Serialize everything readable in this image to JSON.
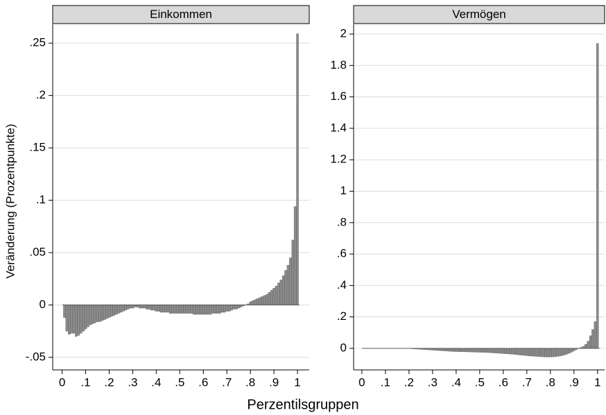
{
  "xlabel": "Perzentilsgruppen",
  "ylabel": "Veränderung (Prozentpunkte)",
  "chart_data": [
    {
      "type": "bar",
      "title": "Einkommen",
      "color": "#8c8c8c",
      "grid": true,
      "xlim": [
        -0.04,
        1.05
      ],
      "ylim": [
        -0.062,
        0.268
      ],
      "xticks": [
        0,
        {
          "value": 0.1,
          "label": ".1"
        },
        {
          "value": 0.2,
          "label": ".2"
        },
        {
          "value": 0.3,
          "label": ".3"
        },
        {
          "value": 0.4,
          "label": ".4"
        },
        {
          "value": 0.5,
          "label": ".5"
        },
        {
          "value": 0.6,
          "label": ".6"
        },
        {
          "value": 0.7,
          "label": ".7"
        },
        {
          "value": 0.8,
          "label": ".8"
        },
        {
          "value": 0.9,
          "label": ".9"
        },
        1
      ],
      "yticks": [
        {
          "value": -0.05,
          "label": "-.05"
        },
        0,
        {
          "value": 0.05,
          "label": ".05"
        },
        {
          "value": 0.1,
          "label": ".1"
        },
        {
          "value": 0.15,
          "label": ".15"
        },
        {
          "value": 0.2,
          "label": ".2"
        },
        {
          "value": 0.25,
          "label": ".25"
        }
      ],
      "x": [
        0.01,
        0.02,
        0.03,
        0.04,
        0.05,
        0.06,
        0.07,
        0.08,
        0.09,
        0.1,
        0.11,
        0.12,
        0.13,
        0.14,
        0.15,
        0.16,
        0.17,
        0.18,
        0.19,
        0.2,
        0.21,
        0.22,
        0.23,
        0.24,
        0.25,
        0.26,
        0.27,
        0.28,
        0.29,
        0.3,
        0.31,
        0.32,
        0.33,
        0.34,
        0.35,
        0.36,
        0.37,
        0.38,
        0.39,
        0.4,
        0.41,
        0.42,
        0.43,
        0.44,
        0.45,
        0.46,
        0.47,
        0.48,
        0.49,
        0.5,
        0.51,
        0.52,
        0.53,
        0.54,
        0.55,
        0.56,
        0.57,
        0.58,
        0.59,
        0.6,
        0.61,
        0.62,
        0.63,
        0.64,
        0.65,
        0.66,
        0.67,
        0.68,
        0.69,
        0.7,
        0.71,
        0.72,
        0.73,
        0.74,
        0.75,
        0.76,
        0.77,
        0.78,
        0.79,
        0.8,
        0.81,
        0.82,
        0.83,
        0.84,
        0.85,
        0.86,
        0.87,
        0.88,
        0.89,
        0.9,
        0.91,
        0.92,
        0.93,
        0.94,
        0.95,
        0.96,
        0.97,
        0.98,
        0.99,
        1
      ],
      "values": [
        -0.012,
        -0.025,
        -0.028,
        -0.027,
        -0.027,
        -0.03,
        -0.029,
        -0.027,
        -0.025,
        -0.023,
        -0.021,
        -0.019,
        -0.018,
        -0.017,
        -0.016,
        -0.016,
        -0.015,
        -0.014,
        -0.013,
        -0.012,
        -0.011,
        -0.01,
        -0.009,
        -0.008,
        -0.007,
        -0.006,
        -0.005,
        -0.004,
        -0.003,
        -0.003,
        -0.002,
        -0.002,
        -0.003,
        -0.003,
        -0.003,
        -0.004,
        -0.004,
        -0.005,
        -0.005,
        -0.006,
        -0.006,
        -0.007,
        -0.007,
        -0.007,
        -0.007,
        -0.008,
        -0.008,
        -0.008,
        -0.008,
        -0.008,
        -0.008,
        -0.008,
        -0.008,
        -0.008,
        -0.008,
        -0.009,
        -0.009,
        -0.009,
        -0.009,
        -0.009,
        -0.009,
        -0.009,
        -0.009,
        -0.008,
        -0.008,
        -0.008,
        -0.008,
        -0.007,
        -0.007,
        -0.006,
        -0.006,
        -0.005,
        -0.004,
        -0.004,
        -0.003,
        -0.002,
        -0.001,
        0,
        0.001,
        0.003,
        0.004,
        0.005,
        0.006,
        0.007,
        0.008,
        0.009,
        0.01,
        0.012,
        0.014,
        0.016,
        0.018,
        0.021,
        0.024,
        0.028,
        0.033,
        0.038,
        0.045,
        0.062,
        0.094,
        0.259
      ]
    },
    {
      "type": "bar",
      "title": "Vermögen",
      "color": "#8c8c8c",
      "grid": true,
      "xlim": [
        -0.035,
        1.03
      ],
      "ylim": [
        -0.137,
        2.062
      ],
      "xticks": [
        0,
        {
          "value": 0.1,
          "label": ".1"
        },
        {
          "value": 0.2,
          "label": ".2"
        },
        {
          "value": 0.3,
          "label": ".3"
        },
        {
          "value": 0.4,
          "label": ".4"
        },
        {
          "value": 0.5,
          "label": ".5"
        },
        {
          "value": 0.6,
          "label": ".6"
        },
        {
          "value": 0.7,
          "label": ".7"
        },
        {
          "value": 0.8,
          "label": ".8"
        },
        {
          "value": 0.9,
          "label": ".9"
        },
        1
      ],
      "yticks": [
        0,
        {
          "value": 0.2,
          "label": ".2"
        },
        {
          "value": 0.4,
          "label": ".4"
        },
        {
          "value": 0.6,
          "label": ".6"
        },
        {
          "value": 0.8,
          "label": ".8"
        },
        1,
        1.2,
        1.4,
        1.6,
        1.8,
        2
      ],
      "x": [
        0.01,
        0.02,
        0.03,
        0.04,
        0.05,
        0.06,
        0.07,
        0.08,
        0.09,
        0.1,
        0.11,
        0.12,
        0.13,
        0.14,
        0.15,
        0.16,
        0.17,
        0.18,
        0.19,
        0.2,
        0.21,
        0.22,
        0.23,
        0.24,
        0.25,
        0.26,
        0.27,
        0.28,
        0.29,
        0.3,
        0.31,
        0.32,
        0.33,
        0.34,
        0.35,
        0.36,
        0.37,
        0.38,
        0.39,
        0.4,
        0.41,
        0.42,
        0.43,
        0.44,
        0.45,
        0.46,
        0.47,
        0.48,
        0.49,
        0.5,
        0.51,
        0.52,
        0.53,
        0.54,
        0.55,
        0.56,
        0.57,
        0.58,
        0.59,
        0.6,
        0.61,
        0.62,
        0.63,
        0.64,
        0.65,
        0.66,
        0.67,
        0.68,
        0.69,
        0.7,
        0.71,
        0.72,
        0.73,
        0.74,
        0.75,
        0.76,
        0.77,
        0.78,
        0.79,
        0.8,
        0.81,
        0.82,
        0.83,
        0.84,
        0.85,
        0.86,
        0.87,
        0.88,
        0.89,
        0.9,
        0.91,
        0.92,
        0.93,
        0.94,
        0.95,
        0.96,
        0.97,
        0.98,
        0.99,
        1
      ],
      "values": [
        0,
        0,
        0,
        0,
        0,
        0,
        0,
        0,
        0,
        0,
        -0.001,
        -0.001,
        -0.001,
        -0.001,
        -0.001,
        -0.001,
        -0.001,
        -0.001,
        -0.001,
        -0.001,
        -0.002,
        -0.003,
        -0.004,
        -0.005,
        -0.006,
        -0.007,
        -0.008,
        -0.009,
        -0.01,
        -0.011,
        -0.012,
        -0.013,
        -0.014,
        -0.015,
        -0.016,
        -0.017,
        -0.018,
        -0.019,
        -0.02,
        -0.02,
        -0.021,
        -0.021,
        -0.022,
        -0.022,
        -0.022,
        -0.023,
        -0.023,
        -0.024,
        -0.024,
        -0.025,
        -0.025,
        -0.026,
        -0.026,
        -0.027,
        -0.028,
        -0.029,
        -0.03,
        -0.031,
        -0.032,
        -0.033,
        -0.034,
        -0.035,
        -0.036,
        -0.037,
        -0.039,
        -0.04,
        -0.042,
        -0.043,
        -0.045,
        -0.046,
        -0.048,
        -0.049,
        -0.05,
        -0.051,
        -0.052,
        -0.053,
        -0.054,
        -0.055,
        -0.055,
        -0.055,
        -0.054,
        -0.053,
        -0.051,
        -0.049,
        -0.046,
        -0.042,
        -0.037,
        -0.031,
        -0.024,
        -0.016,
        -0.008,
        0,
        0.006,
        0.012,
        0.025,
        0.045,
        0.08,
        0.12,
        0.17,
        1.94
      ]
    }
  ]
}
